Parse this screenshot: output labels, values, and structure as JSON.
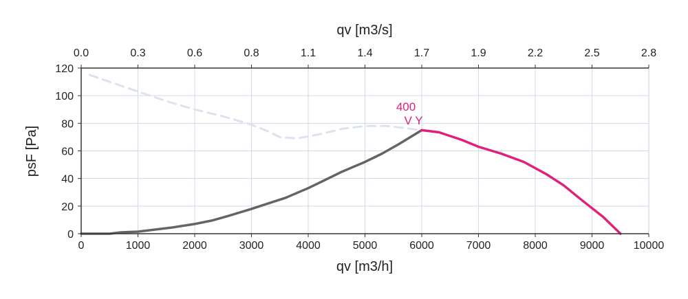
{
  "chart_data": {
    "type": "line",
    "title": "",
    "xlabel": "qv [m3/h]",
    "x2label": "qv [m3/s]",
    "ylabel": "psF [Pa]",
    "xlim": [
      0,
      10000
    ],
    "ylim": [
      0,
      120
    ],
    "grid": true,
    "x_ticks": [
      "0",
      "1000",
      "2000",
      "3000",
      "4000",
      "5000",
      "6000",
      "7000",
      "8000",
      "9000",
      "10000"
    ],
    "x2_ticks": [
      "0.0",
      "0.3",
      "0.6",
      "0.8",
      "1.1",
      "1.4",
      "1.7",
      "1.9",
      "2.2",
      "2.5",
      "2.8"
    ],
    "y_ticks": [
      "0",
      "20",
      "40",
      "60",
      "80",
      "100",
      "120"
    ],
    "annotation": {
      "text_line1": "400",
      "text_line2": "V Y",
      "x": 5800,
      "y": 75
    },
    "series": [
      {
        "style": "dashed",
        "color": "#dce3ee",
        "x": [
          150,
          500,
          1000,
          1500,
          2000,
          2500,
          3000,
          3300,
          3500,
          3800,
          4200,
          4600,
          5000,
          5400,
          5800,
          6000
        ],
        "y": [
          115,
          110,
          103,
          96,
          90,
          85,
          79,
          74,
          70,
          69,
          72,
          76,
          78,
          78,
          76,
          75
        ]
      },
      {
        "style": "solid",
        "color": "#646464",
        "x": [
          0,
          500,
          700,
          1000,
          1300,
          1600,
          2000,
          2300,
          2600,
          3000,
          3300,
          3600,
          4000,
          4300,
          4600,
          5000,
          5300,
          5600,
          6000
        ],
        "y": [
          0,
          0,
          1,
          1.5,
          3,
          4.5,
          7,
          9.5,
          13,
          18,
          22,
          26,
          33,
          39,
          45,
          52,
          58,
          65,
          75
        ]
      },
      {
        "style": "solid",
        "color": "#e0207a",
        "x": [
          6000,
          6300,
          6700,
          7000,
          7400,
          7800,
          8200,
          8500,
          8800,
          9200,
          9500
        ],
        "y": [
          75,
          73.5,
          68,
          63,
          58,
          52,
          43,
          35,
          25,
          12,
          0
        ]
      }
    ]
  }
}
